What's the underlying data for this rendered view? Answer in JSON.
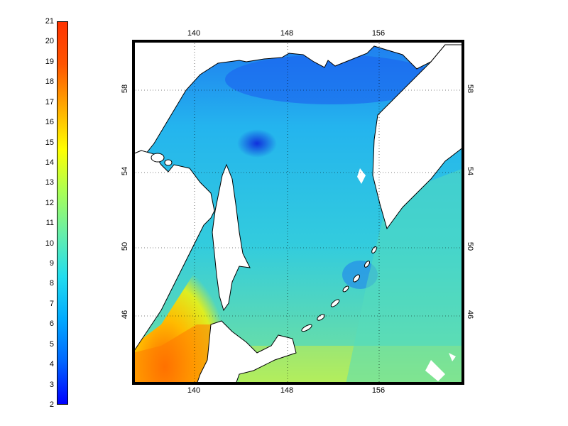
{
  "colorbar": {
    "min": 2,
    "max": 21,
    "labels": [
      "21",
      "20",
      "19",
      "18",
      "17",
      "16",
      "15",
      "14",
      "13",
      "12",
      "11",
      "10",
      "9",
      "8",
      "7",
      "6",
      "5",
      "4",
      "3",
      "2"
    ],
    "colormap": "jet",
    "stops": [
      "#0000ff",
      "#0066ff",
      "#00aaff",
      "#22ddee",
      "#66eeaa",
      "#aaff55",
      "#ffff00",
      "#ffaa00",
      "#ff5500",
      "#ff3300"
    ]
  },
  "map": {
    "lon_ticks": [
      "140",
      "148",
      "156"
    ],
    "lat_ticks": [
      "58",
      "54",
      "50",
      "46"
    ],
    "gridlines": true,
    "land_color": "#ffffff",
    "coast_color": "#000000"
  }
}
